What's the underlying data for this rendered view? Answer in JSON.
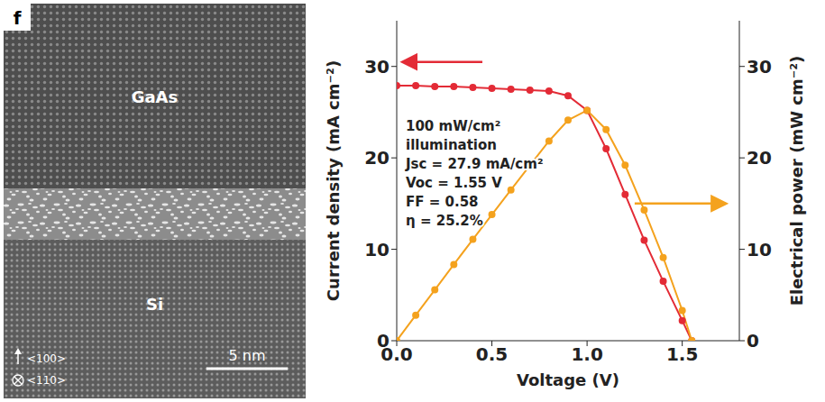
{
  "panel_label": "f",
  "micrograph": {
    "layers": [
      "GaAs",
      "Si"
    ],
    "directions": [
      "<100>",
      "<110>"
    ],
    "scale_bar": "5 nm"
  },
  "chart_data": {
    "type": "line",
    "x_label": "Voltage (V)",
    "y_label": "Current density (mA cm⁻²)",
    "y2_label": "Electrical power (mW cm⁻²)",
    "annotations": [
      "100 mW/cm²",
      "illumination",
      "Jsc = 27.9 mA/cm²",
      "Voc = 1.55 V",
      "FF = 0.58",
      "η = 25.2%"
    ],
    "x": [
      0,
      0.1,
      0.2,
      0.3,
      0.4,
      0.5,
      0.6,
      0.7,
      0.8,
      0.9,
      1.0,
      1.1,
      1.2,
      1.3,
      1.4,
      1.5,
      1.55
    ],
    "xlim": [
      0,
      1.8
    ],
    "xticks": [
      {
        "value": 0,
        "label": "0.0"
      },
      {
        "value": 0.5,
        "label": "0.5"
      },
      {
        "value": 1,
        "label": "1.0"
      },
      {
        "value": 1.5,
        "label": "1.5"
      }
    ],
    "ylim": [
      0,
      35
    ],
    "yticks": [
      0,
      10,
      20,
      30
    ],
    "y2lim": [
      0,
      35
    ],
    "y2ticks": [
      0,
      10,
      20,
      30
    ],
    "grid": false,
    "series": [
      {
        "color": "#e32b36",
        "marker": "circle",
        "values": [
          27.9,
          27.9,
          27.8,
          27.8,
          27.7,
          27.6,
          27.5,
          27.4,
          27.3,
          26.8,
          25.2,
          21.0,
          16.0,
          11.0,
          6.5,
          2.2,
          0
        ]
      },
      {
        "color": "#f4a21e",
        "marker": "circle",
        "axis": "y2",
        "values": [
          0,
          2.79,
          5.56,
          8.34,
          11.08,
          13.8,
          16.5,
          19.18,
          21.84,
          24.12,
          25.2,
          23.1,
          19.2,
          14.3,
          9.1,
          3.3,
          0
        ]
      }
    ]
  }
}
